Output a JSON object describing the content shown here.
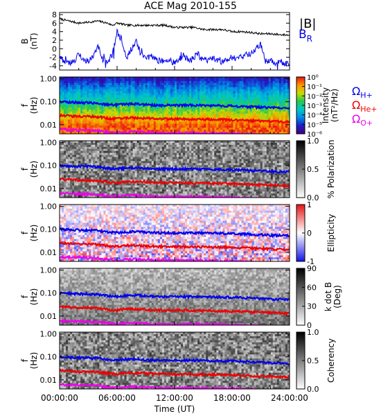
{
  "chart_data": [
    {
      "type": "line",
      "title": "ACE Mag 2010-155",
      "ylabel": "B",
      "yunit": "(nT)",
      "ylim": [
        -5,
        8.5
      ],
      "yticks": [
        "8",
        "6",
        "4",
        "2",
        "0",
        "-2",
        "-4"
      ],
      "xlim": [
        0,
        24
      ],
      "xticks": [
        "00:00:00",
        "06:00:00",
        "12:00:00",
        "18:00:00",
        "24:00:00"
      ],
      "series": [
        {
          "name": "|B|",
          "color": "#000000",
          "x": [
            0,
            1,
            2,
            3,
            4,
            5,
            5.5,
            6,
            6.5,
            7,
            8,
            9,
            10,
            11,
            12,
            13,
            14,
            15,
            16,
            17,
            18,
            19,
            20,
            21,
            22,
            23,
            24
          ],
          "values": [
            7.0,
            6.5,
            6.0,
            6.2,
            6.5,
            6.0,
            5.5,
            6.0,
            5.8,
            5.5,
            5.5,
            5.5,
            5.5,
            5.5,
            5.0,
            5.0,
            5.0,
            4.5,
            4.5,
            4.5,
            4.0,
            4.0,
            3.8,
            3.5,
            3.5,
            3.3,
            3.2
          ]
        },
        {
          "name": "B_R",
          "color": "#0000ee",
          "x": [
            0,
            0.5,
            1,
            1.5,
            2,
            2.5,
            3,
            3.5,
            4,
            4.5,
            5,
            5.5,
            6,
            6.5,
            7,
            7.5,
            8,
            8.5,
            9,
            9.5,
            10,
            10.5,
            11,
            11.5,
            12,
            12.5,
            13,
            13.5,
            14,
            14.5,
            15,
            15.5,
            16,
            16.5,
            17,
            17.5,
            18,
            18.5,
            19,
            19.5,
            20,
            20.5,
            21,
            21.5,
            22,
            22.5,
            23,
            23.5,
            24
          ],
          "values": [
            -2.0,
            -3.0,
            -3.5,
            -3.0,
            -1.0,
            -2.5,
            -3.0,
            -2.0,
            0.5,
            -2.5,
            -3.0,
            -1.5,
            4.0,
            2.0,
            -2.0,
            0.0,
            1.5,
            -1.0,
            -2.5,
            -1.5,
            -2.5,
            -3.0,
            -2.8,
            -2.5,
            -3.5,
            -2.5,
            -1.5,
            -3.0,
            -2.0,
            -1.0,
            -3.0,
            -2.5,
            -2.0,
            -2.8,
            -3.0,
            -2.5,
            -2.0,
            -2.5,
            -2.0,
            -1.5,
            -1.0,
            0.0,
            1.0,
            -3.0,
            -2.5,
            -3.5,
            -3.0,
            -3.5,
            -3.5
          ]
        }
      ]
    },
    {
      "type": "heatmap",
      "ylabel": "f",
      "yunit": "(Hz)",
      "yscale": "log",
      "ylim": [
        0.004,
        1.2
      ],
      "yticks": [
        "1.00",
        "0.10",
        "0.01"
      ],
      "colorbar": {
        "label": "Intensity",
        "unit": "(nT²/Hz)",
        "scale": "log",
        "ticks": [
          "10⁰",
          "10⁻¹",
          "10⁻²",
          "10⁻³",
          "10⁻⁴",
          "10⁻⁵",
          "10⁻⁶"
        ],
        "colormap": "rainbow"
      },
      "legend": [
        {
          "symbol": "Ω",
          "sub": "H+",
          "color": "#0000ee"
        },
        {
          "symbol": "Ω",
          "sub": "He+",
          "color": "#ee0000"
        },
        {
          "symbol": "Ω",
          "sub": "O+",
          "color": "#ee00ee"
        }
      ]
    },
    {
      "type": "heatmap",
      "ylabel": "f",
      "yunit": "(Hz)",
      "yscale": "log",
      "yticks": [
        "1.00",
        "0.10",
        "0.01"
      ],
      "colorbar": {
        "label": "% Polarization",
        "unit": "",
        "ticks": [
          "1.0",
          "0.5",
          "0.0"
        ],
        "colormap": "grayscale"
      }
    },
    {
      "type": "heatmap",
      "ylabel": "f",
      "yunit": "(Hz)",
      "yscale": "log",
      "yticks": [
        "1.00",
        "0.10",
        "0.01"
      ],
      "colorbar": {
        "label": "Ellipticity",
        "unit": "",
        "ticks": [
          "1",
          "0",
          "-1"
        ],
        "colormap": "blue-white-red"
      }
    },
    {
      "type": "heatmap",
      "ylabel": "f",
      "yunit": "(Hz)",
      "yscale": "log",
      "yticks": [
        "1.00",
        "0.10",
        "0.01"
      ],
      "colorbar": {
        "label": "k dot B",
        "unit": "(Deg)",
        "ticks": [
          "90",
          "60",
          "30",
          "0"
        ],
        "colormap": "grayscale"
      }
    },
    {
      "type": "heatmap",
      "ylabel": "f",
      "yunit": "(Hz)",
      "yscale": "log",
      "yticks": [
        "1.00",
        "0.10",
        "0.01"
      ],
      "xlabel": "Time (UT)",
      "xticks": [
        "00:00:00",
        "06:00:00",
        "12:00:00",
        "18:00:00",
        "24:00:00"
      ],
      "colorbar": {
        "label": "Coherency",
        "unit": "",
        "ticks": [
          "1.0",
          "0.5",
          "0.0"
        ],
        "colormap": "grayscale"
      }
    }
  ],
  "gyro_lines": {
    "description_colors": {
      "H": "#0000ee",
      "He": "#ee0000",
      "O": "#ee00ee"
    },
    "x": [
      0,
      2,
      4,
      5,
      6,
      7,
      8,
      9,
      10,
      12,
      14,
      16,
      18,
      20,
      21,
      22,
      24
    ],
    "H": [
      0.1,
      0.093,
      0.088,
      0.075,
      0.072,
      0.078,
      0.08,
      0.075,
      0.07,
      0.07,
      0.07,
      0.068,
      0.065,
      0.06,
      0.058,
      0.055,
      0.052
    ],
    "He": [
      0.025,
      0.023,
      0.022,
      0.019,
      0.018,
      0.02,
      0.02,
      0.019,
      0.018,
      0.018,
      0.017,
      0.017,
      0.016,
      0.015,
      0.0145,
      0.014,
      0.013
    ],
    "O": [
      0.0062,
      0.0058,
      0.0055,
      0.0047,
      0.0045,
      0.0049,
      0.005,
      0.0047,
      0.0044,
      0.0044,
      0.0044,
      0.0042,
      0.0041,
      0.0038,
      0.0036,
      0.0035,
      0.0033
    ]
  }
}
